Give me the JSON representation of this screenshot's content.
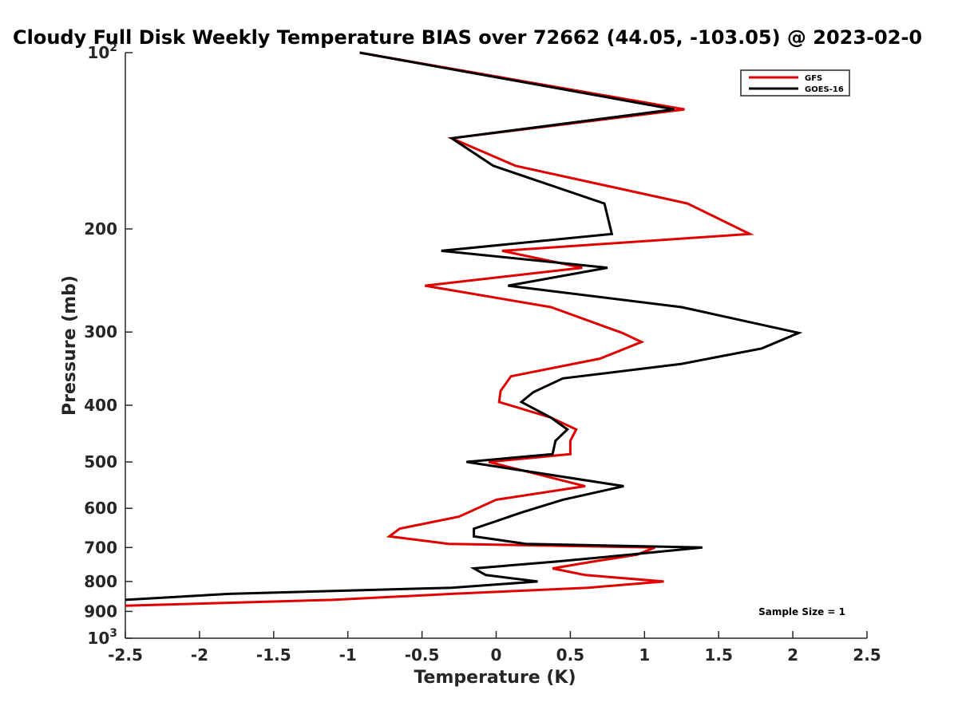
{
  "chart_data": {
    "type": "line",
    "title": "Cloudy Full Disk Weekly Temperature BIAS over 72662 (44.05, -103.05) @ 2023-02-0",
    "xlabel": "Temperature (K)",
    "ylabel": "Pressure (mb)",
    "xlim": [
      -2.5,
      2.5
    ],
    "ylim": [
      100,
      1000
    ],
    "y_scale": "log",
    "y_reversed": true,
    "x_ticks": [
      -2.5,
      -2,
      -1.5,
      -1,
      -0.5,
      0,
      0.5,
      1,
      1.5,
      2,
      2.5
    ],
    "x_tick_labels": [
      "-2.5",
      "-2",
      "-1.5",
      "-1",
      "-0.5",
      "0",
      "0.5",
      "1",
      "1.5",
      "2",
      "2.5"
    ],
    "y_ticks": [
      100,
      200,
      300,
      400,
      500,
      600,
      700,
      800,
      900,
      1000
    ],
    "y_tick_labels": [
      "10²",
      "200",
      "300",
      "400",
      "500",
      "600",
      "700",
      "800",
      "900",
      "10³"
    ],
    "grid": false,
    "legend_position": "top-right",
    "annotation": "Sample Size = 1",
    "series": [
      {
        "name": "GFS",
        "color": "#e00000",
        "x": [
          -0.92,
          1.27,
          -0.3,
          0.13,
          1.29,
          1.71,
          0.04,
          0.58,
          -0.48,
          0.37,
          0.85,
          0.98,
          0.7,
          0.1,
          0.03,
          0.02,
          0.37,
          0.54,
          0.5,
          0.5,
          -0.05,
          0.6,
          0.0,
          -0.25,
          -0.65,
          -0.72,
          -0.32,
          1.07,
          0.95,
          0.65,
          0.38,
          0.6,
          1.13,
          0.62,
          -0.3,
          -1.1,
          -2.5
        ],
        "y": [
          100,
          125,
          140,
          156,
          181,
          204,
          218,
          233,
          250,
          272,
          301,
          312,
          333,
          357,
          378,
          395,
          420,
          440,
          460,
          485,
          500,
          550,
          580,
          620,
          650,
          670,
          690,
          700,
          720,
          740,
          760,
          780,
          800,
          820,
          840,
          860,
          880
        ]
      },
      {
        "name": "GOES-16",
        "color": "#000000",
        "x": [
          -0.92,
          1.2,
          -0.3,
          -0.02,
          0.73,
          0.78,
          -0.37,
          0.75,
          0.08,
          1.25,
          2.04,
          1.79,
          1.25,
          0.45,
          0.25,
          0.17,
          0.37,
          0.48,
          0.4,
          0.38,
          -0.2,
          0.86,
          0.45,
          0.17,
          -0.03,
          -0.15,
          -0.15,
          0.2,
          1.39,
          0.9,
          0.4,
          -0.15,
          -0.07,
          0.28,
          -0.3,
          -1.8,
          -2.5
        ],
        "y": [
          100,
          125,
          140,
          156,
          181,
          204,
          218,
          233,
          250,
          272,
          301,
          320,
          340,
          360,
          380,
          395,
          420,
          440,
          460,
          485,
          500,
          550,
          580,
          610,
          635,
          650,
          670,
          690,
          700,
          720,
          740,
          760,
          780,
          800,
          820,
          840,
          860
        ]
      }
    ]
  }
}
